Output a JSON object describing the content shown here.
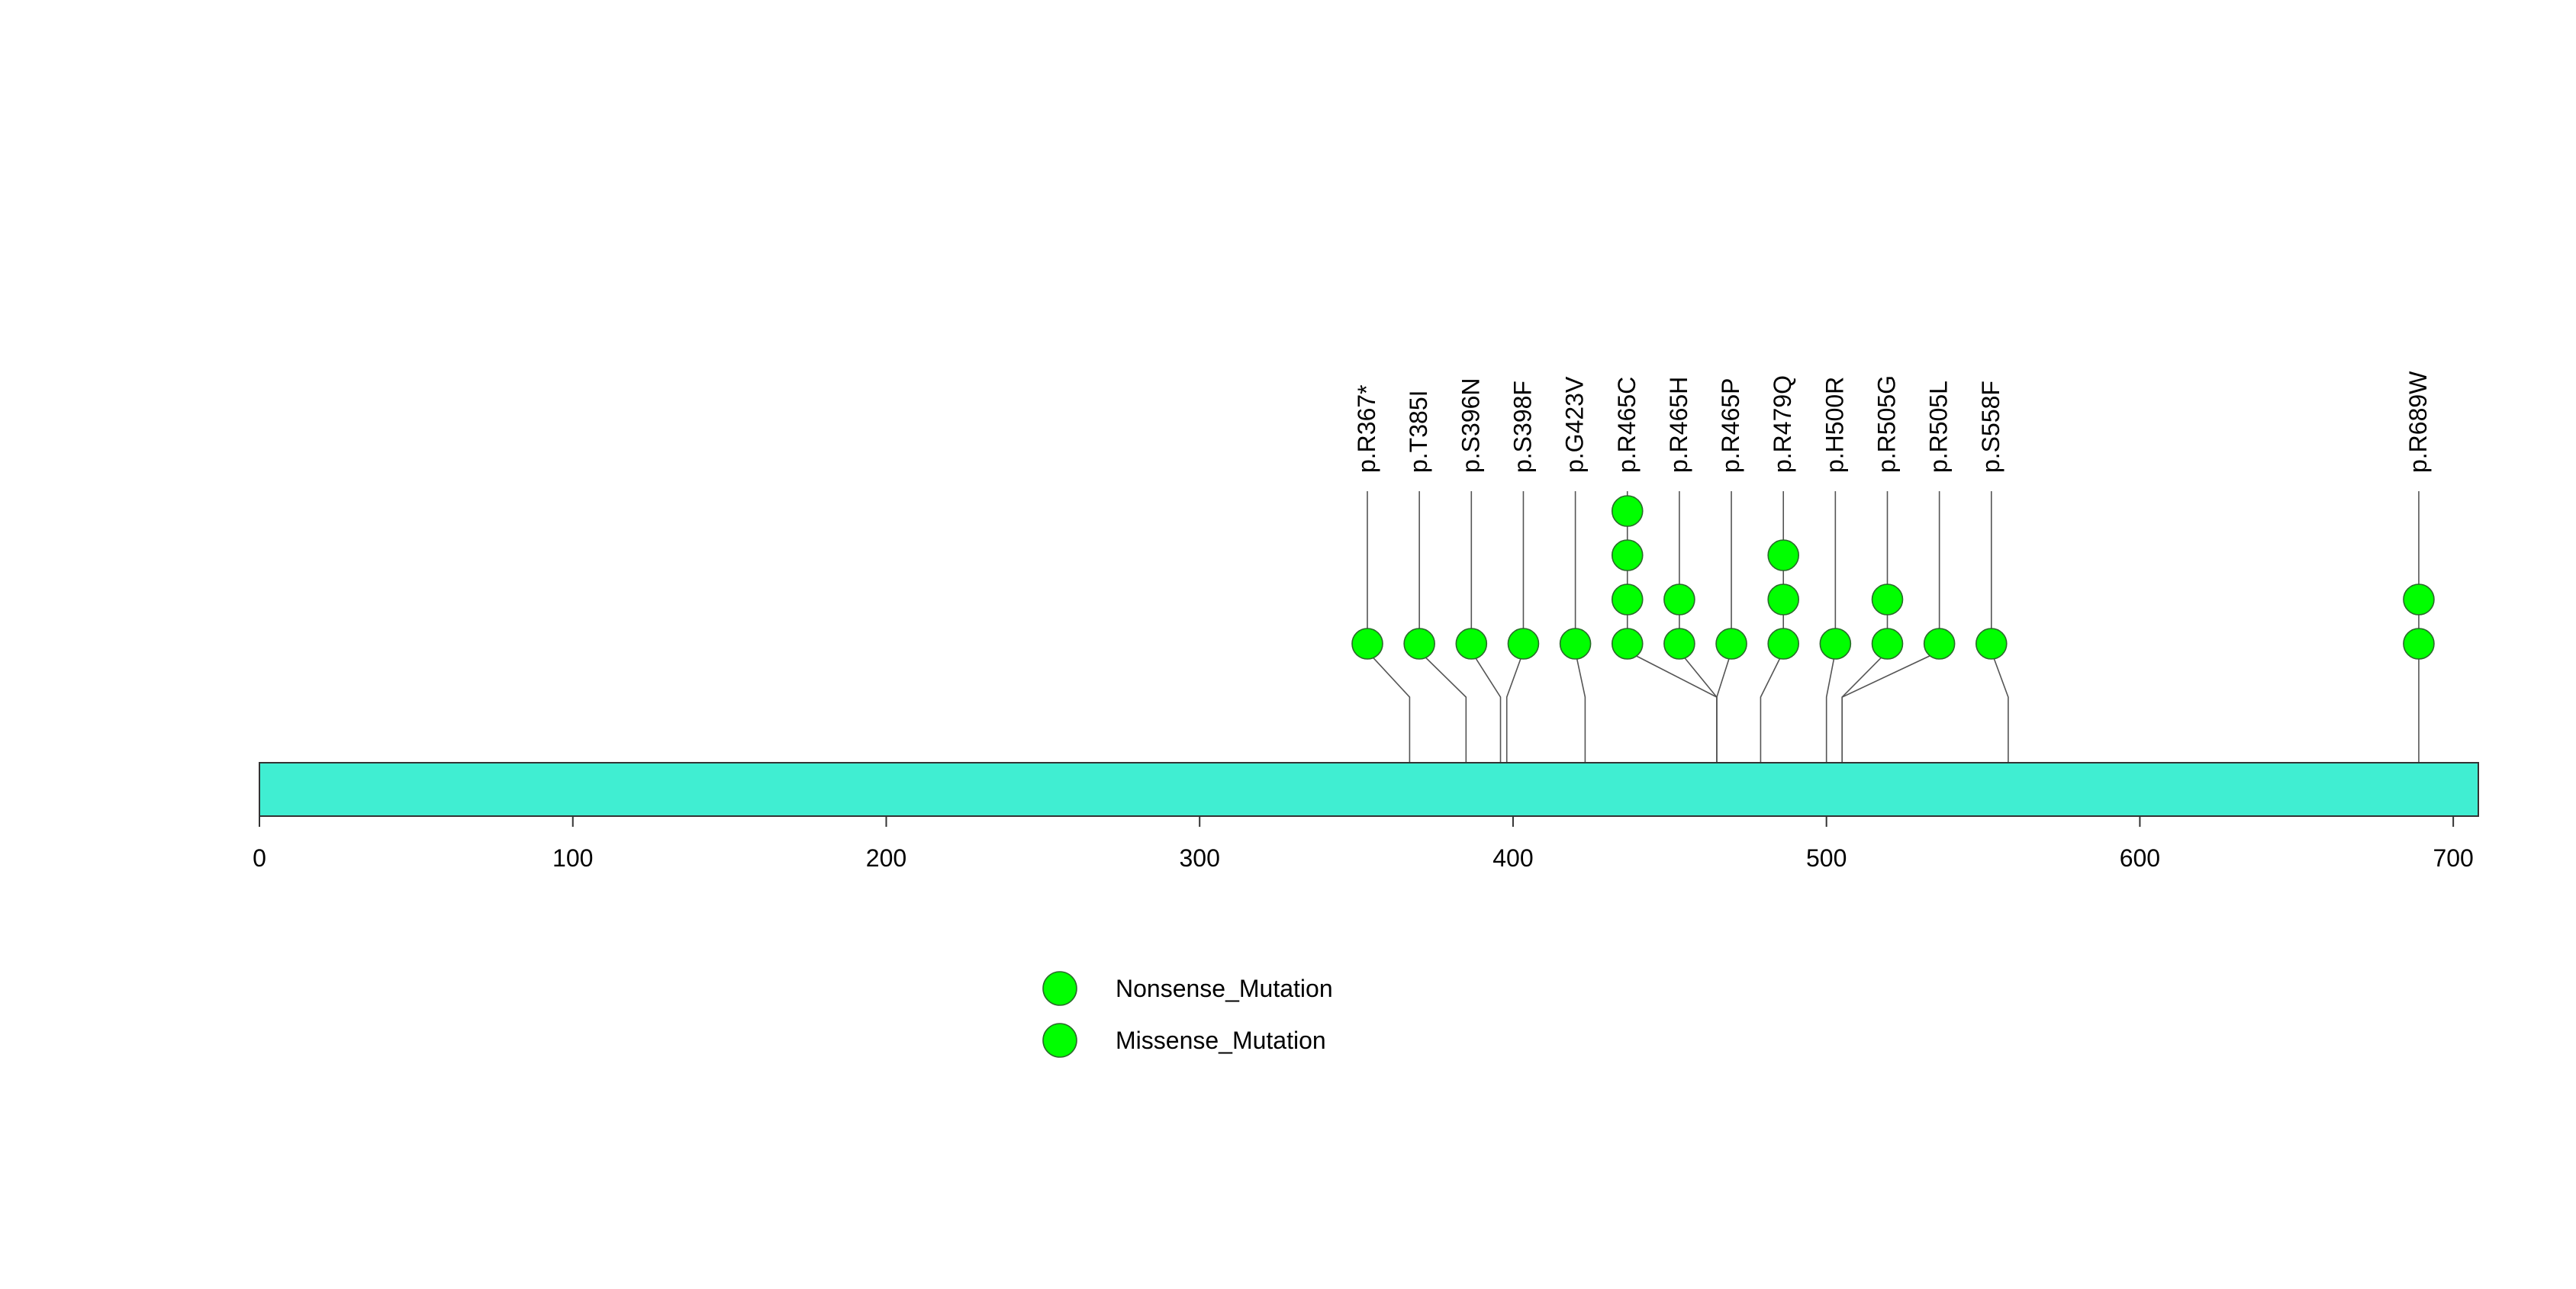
{
  "chart_data": {
    "type": "lollipop",
    "title": "",
    "xlabel": "",
    "ylabel": "",
    "xlim": [
      0,
      708
    ],
    "ticks": [
      0,
      100,
      200,
      300,
      400,
      500,
      600,
      700
    ],
    "tick_labels": [
      "0",
      "100",
      "200",
      "300",
      "400",
      "500",
      "600",
      "700"
    ],
    "protein_length": 708,
    "domains": [],
    "mutations": [
      {
        "label": "p.R367*",
        "position": 367,
        "count": 1,
        "type": "Nonsense_Mutation"
      },
      {
        "label": "p.T385I",
        "position": 385,
        "count": 1,
        "type": "Missense_Mutation"
      },
      {
        "label": "p.S396N",
        "position": 396,
        "count": 1,
        "type": "Missense_Mutation"
      },
      {
        "label": "p.S398F",
        "position": 398,
        "count": 1,
        "type": "Missense_Mutation"
      },
      {
        "label": "p.G423V",
        "position": 423,
        "count": 1,
        "type": "Missense_Mutation"
      },
      {
        "label": "p.R465C",
        "position": 465,
        "count": 4,
        "type": "Missense_Mutation"
      },
      {
        "label": "p.R465H",
        "position": 465,
        "count": 2,
        "type": "Missense_Mutation"
      },
      {
        "label": "p.R465P",
        "position": 465,
        "count": 1,
        "type": "Missense_Mutation"
      },
      {
        "label": "p.R479Q",
        "position": 479,
        "count": 3,
        "type": "Missense_Mutation"
      },
      {
        "label": "p.H500R",
        "position": 500,
        "count": 1,
        "type": "Missense_Mutation"
      },
      {
        "label": "p.R505G",
        "position": 505,
        "count": 2,
        "type": "Missense_Mutation"
      },
      {
        "label": "p.R505L",
        "position": 505,
        "count": 1,
        "type": "Missense_Mutation"
      },
      {
        "label": "p.S558F",
        "position": 558,
        "count": 1,
        "type": "Missense_Mutation"
      },
      {
        "label": "p.R689W",
        "position": 689,
        "count": 2,
        "type": "Missense_Mutation"
      }
    ],
    "legend": {
      "placement": "bottom-center",
      "entries": [
        {
          "label": "Nonsense_Mutation",
          "color": "#00ff00"
        },
        {
          "label": "Missense_Mutation",
          "color": "#00ff00"
        }
      ]
    }
  },
  "colors": {
    "protein_bar": "#40eed2",
    "mutation_nonsense": "#00ff00",
    "mutation_missense": "#00ff00",
    "outline": "#333333"
  }
}
